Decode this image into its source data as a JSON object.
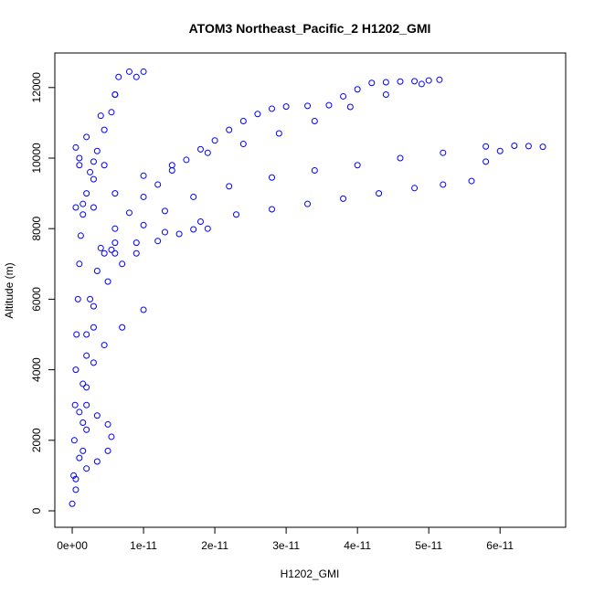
{
  "chart_data": {
    "type": "scatter",
    "title": "ATOM3 Northeast_Pacific_2 H1202_GMI",
    "x_label": "H1202_GMI",
    "y_label": "Altitude (m)",
    "color": "#0000ff",
    "xlim": [
      -2.44e-12,
      6.92e-11
    ],
    "ylim": [
      -466,
      12979
    ],
    "xticks": [
      {
        "value": 0,
        "label": "0e+00"
      },
      {
        "value": 1e-11,
        "label": "1e-11"
      },
      {
        "value": 2e-11,
        "label": "2e-11"
      },
      {
        "value": 3e-11,
        "label": "3e-11"
      },
      {
        "value": 4e-11,
        "label": "4e-11"
      },
      {
        "value": 5e-11,
        "label": "5e-11"
      },
      {
        "value": 6e-11,
        "label": "6e-11"
      }
    ],
    "yticks": [
      0,
      2000,
      4000,
      6000,
      8000,
      10000,
      12000
    ],
    "x": [
      5.15e-11,
      5e-11,
      4.8e-11,
      4.6e-11,
      4.4e-11,
      4.2e-11,
      4e-11,
      3.8e-11,
      3.6e-11,
      3.3e-11,
      3e-11,
      2.8e-11,
      2.6e-11,
      2.4e-11,
      2.2e-11,
      2e-11,
      1.8e-11,
      1.6e-11,
      1.4e-11,
      1.2e-11,
      1e-11,
      8e-12,
      6e-12,
      4e-12,
      4.9e-11,
      4.4e-11,
      3.9e-11,
      3.4e-11,
      2.9e-11,
      2.4e-11,
      1.9e-11,
      1.4e-11,
      1e-11,
      6e-12,
      3e-12,
      6.6e-11,
      6.4e-11,
      6.2e-11,
      6e-11,
      5.8e-11,
      5.6e-11,
      5.2e-11,
      4.8e-11,
      4.3e-11,
      3.8e-11,
      3.3e-11,
      2.8e-11,
      2.3e-11,
      1.8e-11,
      1.3e-11,
      9e-12,
      6e-12,
      5.8e-11,
      5.2e-11,
      4.6e-11,
      4e-11,
      3.4e-11,
      2.8e-11,
      2.2e-11,
      1.7e-11,
      1.3e-11,
      1e-11,
      6e-12,
      1.9e-11,
      1.7e-11,
      1.5e-11,
      1.2e-11,
      9e-12,
      7e-12,
      5e-12,
      3e-12,
      2e-12,
      1e-11,
      8e-12,
      6.5e-12,
      6e-12,
      5.5e-12,
      4.5e-12,
      3.5e-12,
      2.5e-12,
      2e-12,
      1.5e-12,
      1.2e-12,
      1e-12,
      8e-13,
      6e-13,
      5e-13,
      4e-13,
      3e-13,
      2e-13,
      0,
      9e-12,
      6e-12,
      4e-12,
      2e-12,
      1e-12,
      5e-13,
      1e-12,
      3e-12,
      4.5e-12,
      3e-12,
      1.5e-12,
      5e-13,
      5.5e-12,
      4.5e-12,
      3.5e-12,
      2.5e-12,
      3e-12,
      2e-12,
      1.5e-12,
      1e-12,
      2e-12,
      3.5e-12,
      5e-12,
      5.5e-12,
      5e-12,
      3.5e-12,
      2e-12,
      5e-13,
      1.5e-12,
      2e-12,
      1e-11,
      7e-12,
      4.5e-12,
      3e-12,
      2e-12,
      1.5e-12,
      1e-12,
      5e-13
    ],
    "y": [
      12220,
      12200,
      12180,
      12170,
      12150,
      12130,
      11950,
      11750,
      11500,
      11480,
      11460,
      11400,
      11250,
      11050,
      10800,
      10500,
      10250,
      9950,
      9650,
      9250,
      8900,
      8450,
      8000,
      7450,
      12100,
      11800,
      11450,
      11050,
      10700,
      10400,
      10150,
      9800,
      9500,
      9000,
      8600,
      10320,
      10340,
      10350,
      10200,
      9900,
      9350,
      9250,
      9150,
      9000,
      8850,
      8700,
      8550,
      8400,
      8200,
      7900,
      7600,
      7300,
      10330,
      10150,
      10000,
      9800,
      9650,
      9450,
      9200,
      8900,
      8500,
      8100,
      7600,
      8000,
      7980,
      7850,
      7650,
      7300,
      7000,
      6500,
      5800,
      5000,
      12450,
      12450,
      12300,
      11800,
      11300,
      10800,
      10200,
      9600,
      9000,
      8400,
      7800,
      7000,
      6000,
      5000,
      4000,
      3000,
      2000,
      1000,
      200,
      12300,
      11800,
      11200,
      10600,
      10000,
      10300,
      9800,
      9900,
      9800,
      9400,
      8700,
      8600,
      7400,
      7300,
      6800,
      6000,
      5200,
      4400,
      3600,
      2800,
      3000,
      2700,
      2450,
      2100,
      1700,
      1400,
      1200,
      900,
      1700,
      2300,
      5700,
      5200,
      4700,
      4200,
      3500,
      2500,
      1500,
      600
    ]
  }
}
